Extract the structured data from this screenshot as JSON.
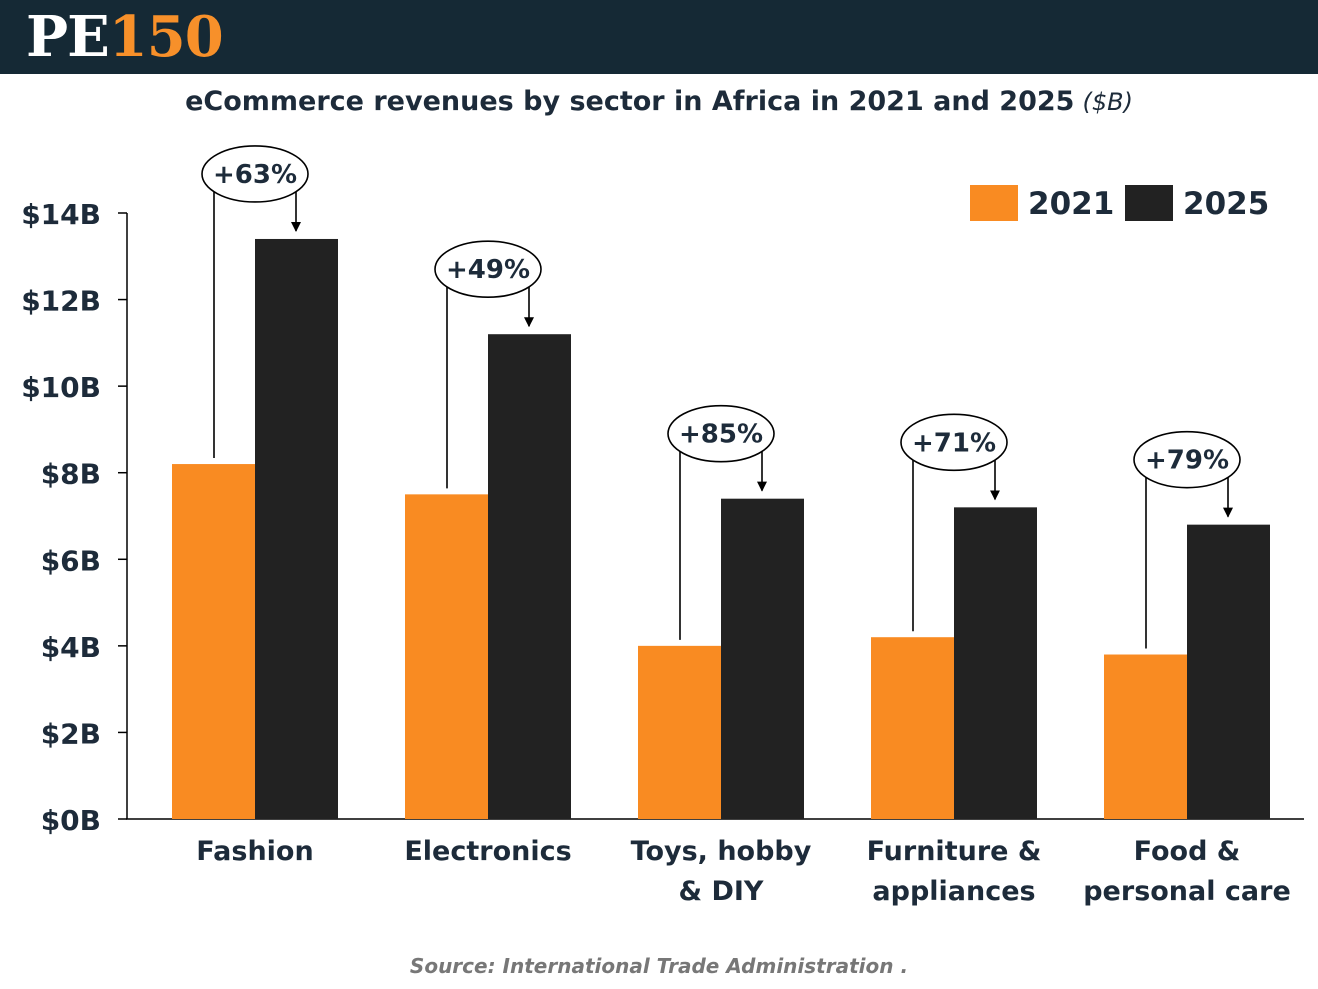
{
  "brand": {
    "logo_primary": "PE",
    "logo_accent": "150"
  },
  "colors": {
    "header_bg": "#152935",
    "accent": "#f7902a",
    "series_2021": "#f98b22",
    "series_2025": "#222222",
    "text": "#1d2b3a"
  },
  "chart_data": {
    "type": "bar",
    "title": "eCommerce revenues by sector in Africa in 2021 and 2025",
    "unit_label": "($B)",
    "categories": [
      "Fashion",
      "Electronics",
      "Toys, hobby & DIY",
      "Furniture & appliances",
      "Food & personal care"
    ],
    "category_lines": [
      [
        "Fashion"
      ],
      [
        "Electronics"
      ],
      [
        "Toys, hobby",
        "& DIY"
      ],
      [
        "Furniture &",
        "appliances"
      ],
      [
        "Food &",
        "personal care"
      ]
    ],
    "series": [
      {
        "name": "2021",
        "values": [
          8.2,
          7.5,
          4.0,
          4.2,
          3.8
        ]
      },
      {
        "name": "2025",
        "values": [
          13.4,
          11.2,
          7.4,
          7.2,
          6.8
        ]
      }
    ],
    "growth_labels": [
      "+63%",
      "+49%",
      "+85%",
      "+71%",
      "+79%"
    ],
    "yticks": [
      0,
      2,
      4,
      6,
      8,
      10,
      12,
      14
    ],
    "ytick_labels": [
      "$0B",
      "$2B",
      "$4B",
      "$6B",
      "$8B",
      "$10B",
      "$12B",
      "$14B"
    ],
    "ylim": [
      0,
      14
    ],
    "legend_position": "top-right",
    "grid": false
  },
  "source": "Source:  International Trade Administration ."
}
